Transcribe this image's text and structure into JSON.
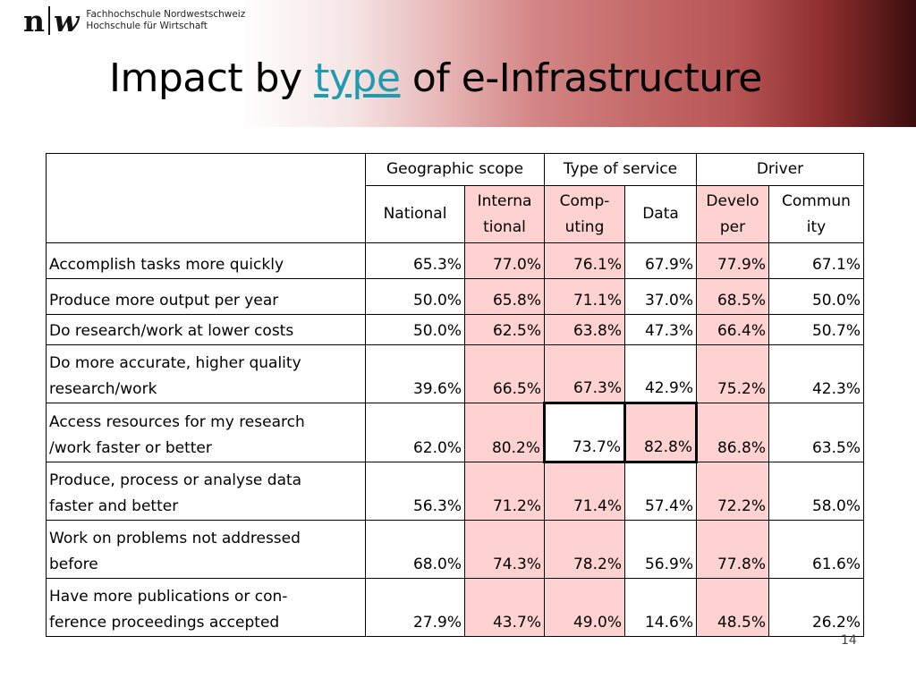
{
  "logo": {
    "mark_n": "n",
    "mark_w": "w",
    "line1": "Fachhochschule Nordwestschweiz",
    "line2": "Hochschule für Wirtschaft"
  },
  "title": {
    "before": "Impact by ",
    "link": "type",
    "after": " of e-Infrastructure"
  },
  "table": {
    "groups": [
      "Geographic scope",
      "Type of service",
      "Driver"
    ],
    "columns": [
      {
        "line1": "National",
        "line2": ""
      },
      {
        "line1": "Interna",
        "line2": "tional"
      },
      {
        "line1": "Comp-",
        "line2": "uting"
      },
      {
        "line1": "Data",
        "line2": ""
      },
      {
        "line1": "Develo",
        "line2": "per"
      },
      {
        "line1": "Commun",
        "line2": "ity"
      }
    ],
    "rows": [
      {
        "line1": "Accomplish tasks more quickly",
        "line2": "",
        "values": [
          "65.3%",
          "77.0%",
          "76.1%",
          "67.9%",
          "77.9%",
          "67.1%"
        ]
      },
      {
        "line1": "Produce more output per year",
        "line2": "",
        "values": [
          "50.0%",
          "65.8%",
          "71.1%",
          "37.0%",
          "68.5%",
          "50.0%"
        ]
      },
      {
        "line1": "Do research/work at lower costs",
        "line2": "",
        "values": [
          "50.0%",
          "62.5%",
          "63.8%",
          "47.3%",
          "66.4%",
          "50.7%"
        ]
      },
      {
        "line1": "Do more accurate, higher quality",
        "line2": "research/work",
        "values": [
          "39.6%",
          "66.5%",
          "67.3%",
          "42.9%",
          "75.2%",
          "42.3%"
        ]
      },
      {
        "line1": "Access resources for my research",
        "line2": "/work faster or better",
        "values": [
          "62.0%",
          "80.2%",
          "73.7%",
          "82.8%",
          "86.8%",
          "63.5%"
        ]
      },
      {
        "line1": "Produce, process or analyse data",
        "line2": "faster and better",
        "values": [
          "56.3%",
          "71.2%",
          "71.4%",
          "57.4%",
          "72.2%",
          "58.0%"
        ]
      },
      {
        "line1": "Work on problems not addressed",
        "line2": "before",
        "values": [
          "68.0%",
          "74.3%",
          "78.2%",
          "56.9%",
          "77.8%",
          "61.6%"
        ]
      },
      {
        "line1": "Have more publications or con-",
        "line2": "ference proceedings accepted",
        "values": [
          "27.9%",
          "43.7%",
          "49.0%",
          "14.6%",
          "48.5%",
          "26.2%"
        ]
      }
    ]
  },
  "page_number": "14",
  "colors": {
    "highlight": "#ffd2d2",
    "link": "#1f9bb0",
    "band_dark": "#3a0d0d",
    "band_mid": "#c46868"
  }
}
